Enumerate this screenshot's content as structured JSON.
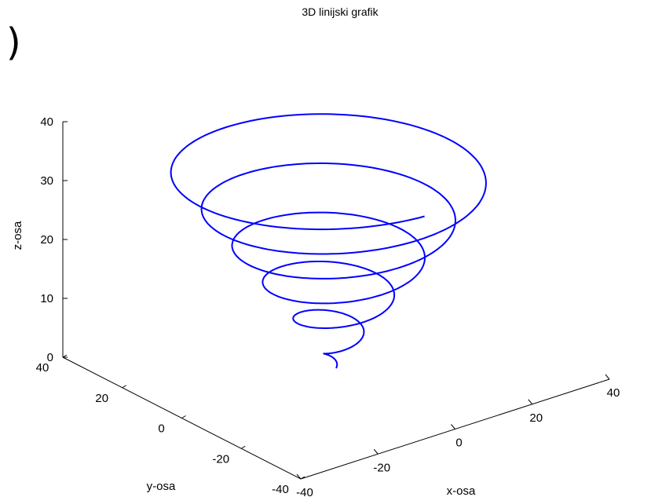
{
  "page_fragment": ")",
  "chart_data": {
    "type": "line",
    "projection": "3d",
    "title": "3D linijski grafik",
    "xlabel": "x-osa",
    "ylabel": "y-osa",
    "zlabel": "z-osa",
    "xlim": [
      -40,
      40
    ],
    "ylim": [
      -40,
      40
    ],
    "zlim": [
      0,
      40
    ],
    "xticks": [
      -40,
      -20,
      0,
      20,
      40
    ],
    "yticks": [
      -40,
      -20,
      0,
      20,
      40
    ],
    "zticks": [
      0,
      10,
      20,
      30,
      40
    ],
    "grid": false,
    "series": [
      {
        "color": "#0000ff",
        "x_formula": "t*cos(t)",
        "y_formula": "t*sin(t)",
        "z_formula": "t",
        "t_range": [
          0,
          36
        ]
      }
    ]
  }
}
